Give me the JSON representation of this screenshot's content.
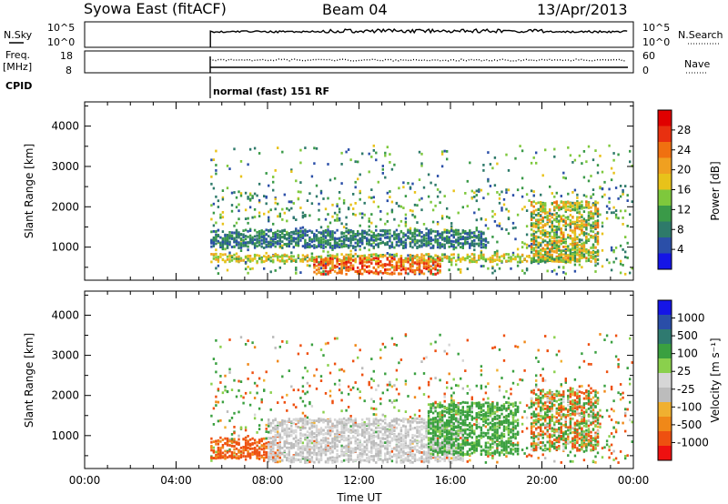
{
  "header": {
    "station": "Syowa East (fitACF)",
    "beam": "Beam 04",
    "date": "13/Apr/2013"
  },
  "aux_panels": {
    "nsky_label": "N.Sky",
    "nsky_ticks": [
      "10^5",
      "10^0"
    ],
    "nsearch_label": "N.Search",
    "nsearch_ticks": [
      "10^5",
      "10^0"
    ],
    "freq_label": "Freq.",
    "freq_unit": "[MHz]",
    "freq_ticks": [
      "18",
      "8"
    ],
    "nave_label": "Nave",
    "nave_ticks": [
      "60",
      "0"
    ],
    "cpid_label": "CPID",
    "cpid_text": "normal (fast) 151 RF"
  },
  "colors": {
    "power": [
      "#1515e6",
      "#2b4fa8",
      "#2e7a6a",
      "#3a9a48",
      "#7ec83c",
      "#e8c21a",
      "#f0a020",
      "#f07010",
      "#e83010",
      "#e00000"
    ],
    "velocity": [
      "#ee1010",
      "#ee5010",
      "#f08818",
      "#f0b030",
      "#bcbcbc",
      "#d6d6d6",
      "#8ad04c",
      "#3aa040",
      "#2f7a70",
      "#2a4ea8",
      "#1515e6"
    ]
  },
  "chart_data": [
    {
      "type": "heatmap",
      "panel": "power",
      "xlabel": "",
      "ylabel": "Slant Range [km]",
      "colorbar_label": "Power [dB]",
      "colorbar_ticks": [
        "28",
        "24",
        "20",
        "16",
        "12",
        "8",
        "4"
      ],
      "colorbar_range": [
        0,
        32
      ],
      "xlim_hours": [
        0,
        24
      ],
      "ylim_km": [
        180,
        4600
      ],
      "yticks": [
        "1000",
        "2000",
        "3000",
        "4000"
      ],
      "data_start_ut": "05:30",
      "features": [
        {
          "name": "near-range E-region band",
          "ut": [
            "05:30",
            "21:50"
          ],
          "range_km": [
            600,
            800
          ],
          "power_db": [
            12,
            22
          ]
        },
        {
          "name": "strong echo arc",
          "ut": [
            "10:00",
            "15:30"
          ],
          "range_km": [
            300,
            700
          ],
          "power_db": [
            20,
            30
          ]
        },
        {
          "name": "mid-range band",
          "ut": [
            "05:30",
            "17:30"
          ],
          "range_km": [
            950,
            1400
          ],
          "power_db": [
            4,
            12
          ]
        },
        {
          "name": "evening patch",
          "ut": [
            "19:30",
            "22:30"
          ],
          "range_km": [
            600,
            2100
          ],
          "power_db": [
            8,
            24
          ]
        }
      ]
    },
    {
      "type": "heatmap",
      "panel": "velocity",
      "xlabel": "Time UT",
      "ylabel": "Slant Range [km]",
      "colorbar_label": "Velocity [m s⁻¹]",
      "colorbar_ticks": [
        "1000",
        "500",
        "100",
        "25",
        "-25",
        "-100",
        "-500",
        "-1000"
      ],
      "xlim_hours": [
        0,
        24
      ],
      "ylim_km": [
        180,
        4600
      ],
      "yticks": [
        "1000",
        "2000",
        "3000",
        "4000"
      ],
      "xticks": [
        "00:00",
        "04:00",
        "08:00",
        "12:00",
        "16:00",
        "20:00",
        "00:00"
      ],
      "data_start_ut": "05:30",
      "features": [
        {
          "name": "near-range band",
          "ut": [
            "05:30",
            "08:30"
          ],
          "range_km": [
            400,
            900
          ],
          "velocity_ms": [
            -200,
            -60
          ]
        },
        {
          "name": "ground-scatter arc",
          "ut": [
            "08:00",
            "16:30"
          ],
          "range_km": [
            300,
            1400
          ],
          "velocity_ms": [
            -25,
            25
          ]
        },
        {
          "name": "positive velocity band",
          "ut": [
            "15:00",
            "19:00"
          ],
          "range_km": [
            500,
            1800
          ],
          "velocity_ms": [
            60,
            300
          ]
        },
        {
          "name": "evening patch",
          "ut": [
            "19:30",
            "22:30"
          ],
          "range_km": [
            600,
            2100
          ],
          "velocity_ms": [
            -300,
            300
          ]
        }
      ]
    }
  ]
}
